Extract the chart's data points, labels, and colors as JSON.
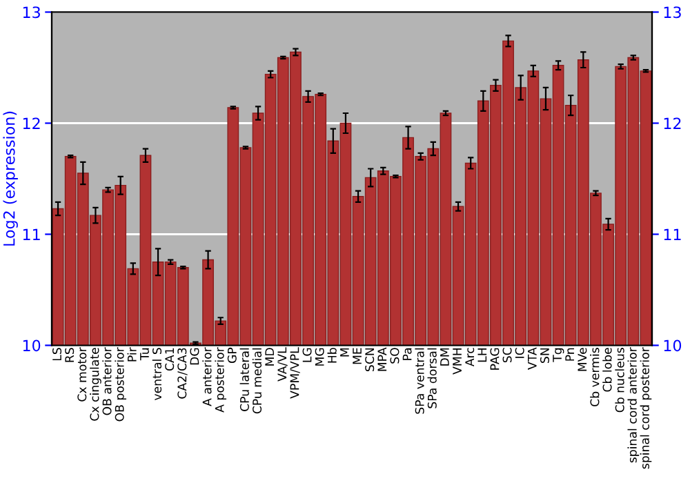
{
  "chart_data": {
    "type": "bar",
    "ylabel": "Log2 (expression)",
    "categories": [
      "LS",
      "RS",
      "Cx motor",
      "Cx cingulate",
      "OB anterior",
      "OB posterior",
      "Pir",
      "Tu",
      "ventral S",
      "CA1",
      "CA2/CA3",
      "DG",
      "A anterior",
      "A posterior",
      "GP",
      "CPu lateral",
      "CPu medial",
      "MD",
      "VA/VL",
      "VPM/VPL",
      "LG",
      "MG",
      "Hb",
      "M",
      "ME",
      "SCN",
      "MPA",
      "SO",
      "Pa",
      "SPa ventral",
      "SPa dorsal",
      "DM",
      "VMH",
      "Arc",
      "LH",
      "PAG",
      "SC",
      "IC",
      "VTA",
      "SN",
      "Tg",
      "Pn",
      "MVe",
      "Cb vermis",
      "Cb lobe",
      "Cb nucleus",
      "spinal cord anterior",
      "spinal cord posterior"
    ],
    "values": [
      11.23,
      11.7,
      11.55,
      11.17,
      11.4,
      11.44,
      10.69,
      11.71,
      10.75,
      10.75,
      10.7,
      10.02,
      10.77,
      10.22,
      12.14,
      11.78,
      12.09,
      12.44,
      12.59,
      12.64,
      12.24,
      12.26,
      11.84,
      12.0,
      11.34,
      11.51,
      11.57,
      11.52,
      11.87,
      11.7,
      11.77,
      12.09,
      11.25,
      11.64,
      12.2,
      12.34,
      12.74,
      12.32,
      12.47,
      12.22,
      12.52,
      12.16,
      12.57,
      11.37,
      11.09,
      12.51,
      12.59,
      12.47
    ],
    "errors": [
      0.06,
      0.01,
      0.1,
      0.07,
      0.02,
      0.08,
      0.05,
      0.06,
      0.12,
      0.02,
      0.01,
      0.01,
      0.08,
      0.03,
      0.01,
      0.01,
      0.06,
      0.03,
      0.01,
      0.03,
      0.05,
      0.01,
      0.11,
      0.09,
      0.05,
      0.08,
      0.03,
      0.01,
      0.1,
      0.03,
      0.06,
      0.02,
      0.04,
      0.05,
      0.09,
      0.05,
      0.05,
      0.11,
      0.05,
      0.1,
      0.04,
      0.09,
      0.07,
      0.02,
      0.05,
      0.02,
      0.02,
      0.01
    ],
    "color": "#b23232",
    "ylim": [
      10,
      13
    ],
    "yticks": [
      10,
      11,
      12,
      13
    ],
    "y2lim": [
      10,
      13
    ],
    "y2ticks": [
      10,
      11,
      12,
      13
    ],
    "grid": "y"
  }
}
